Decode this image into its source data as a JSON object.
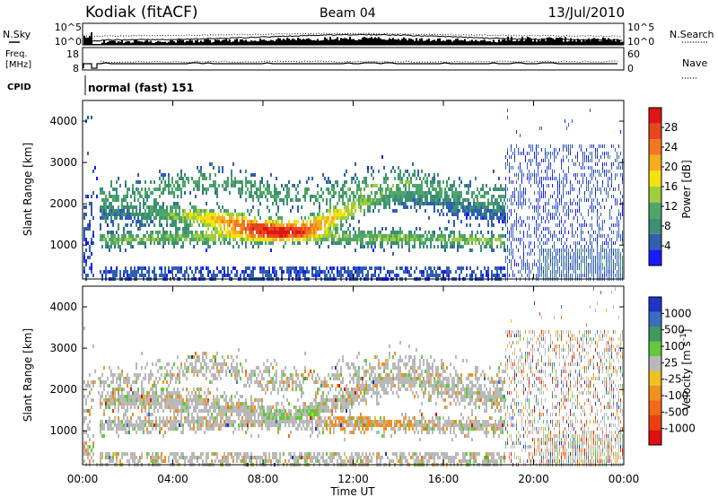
{
  "header": {
    "station": "Kodiak (fitACF)",
    "beam": "Beam 04",
    "date": "13/Jul/2010"
  },
  "noise_panel": {
    "left_label": "N.Sky",
    "right_label": "N.Search",
    "left_ticks": [
      "10^5",
      "10^0"
    ],
    "right_ticks": [
      "10^5",
      "10^0"
    ]
  },
  "freq_panel": {
    "left_label_1": "Freq.",
    "left_label_2": "[MHz]",
    "right_label": "Nave",
    "left_ticks": [
      "18",
      "8"
    ],
    "right_ticks": [
      "60",
      "0"
    ]
  },
  "cpid": {
    "label": "CPID",
    "mode": "normal (fast) 151"
  },
  "x_axis": {
    "label": "Time UT",
    "ticks": [
      "00:00",
      "04:00",
      "08:00",
      "12:00",
      "16:00",
      "20:00",
      "00:00"
    ]
  },
  "chart_data": [
    {
      "type": "heatmap",
      "panel": "power",
      "ylabel": "Slant Range [km]",
      "yticks": [
        "1000",
        "2000",
        "3000",
        "4000"
      ],
      "ylim": [
        180,
        4500
      ],
      "x": [
        "00:00",
        "04:00",
        "08:00",
        "12:00",
        "16:00",
        "20:00",
        "00:00"
      ],
      "colorbar": {
        "label": "Power [dB]",
        "ticks": [
          "4",
          "8",
          "12",
          "16",
          "20",
          "24",
          "28"
        ],
        "colors": [
          "#1a1aff",
          "#2f5fb0",
          "#3d8f73",
          "#4fa66a",
          "#9fcd3c",
          "#f2e210",
          "#f5ad1e",
          "#f07820",
          "#e8461e",
          "#e01515"
        ]
      }
    },
    {
      "type": "heatmap",
      "panel": "velocity",
      "ylabel": "Slant Range [km]",
      "yticks": [
        "1000",
        "2000",
        "3000",
        "4000"
      ],
      "ylim": [
        180,
        4500
      ],
      "x": [
        "00:00",
        "04:00",
        "08:00",
        "12:00",
        "16:00",
        "20:00",
        "00:00"
      ],
      "colorbar": {
        "label": "Velocity [m s",
        "label_sup": "-1",
        "label_end": "]",
        "ticks": [
          "1000",
          "500",
          "100",
          "25",
          "-25",
          "-100",
          "-500",
          "-1000"
        ],
        "colors": [
          "#2233c8",
          "#3b6ec0",
          "#3f9960",
          "#63c83a",
          "#b9b9b9",
          "#f0c020",
          "#f09020",
          "#f06a1a",
          "#e84010",
          "#e01010"
        ]
      }
    }
  ]
}
